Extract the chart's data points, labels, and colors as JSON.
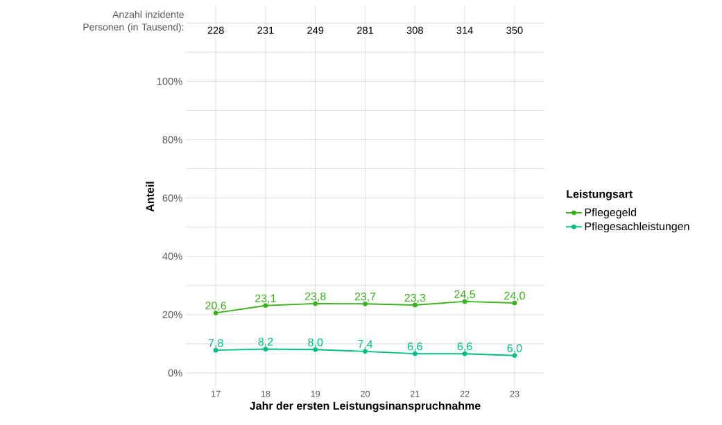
{
  "chart_data": {
    "type": "line",
    "xlabel": "Jahr der ersten Leistungsinanspruchnahme",
    "ylabel": "Anteil",
    "legend_title": "Leistungsart",
    "categories": [
      "17",
      "18",
      "19",
      "20",
      "21",
      "22",
      "23"
    ],
    "series": [
      {
        "name": "Pflegegeld",
        "color": "#38b41a",
        "values": [
          20.6,
          23.1,
          23.8,
          23.7,
          23.3,
          24.5,
          24.0
        ],
        "value_labels": [
          "20,6",
          "23,1",
          "23,8",
          "23,7",
          "23,3",
          "24,5",
          "24,0"
        ]
      },
      {
        "name": "Pflegesachleistungen",
        "color": "#00c07b",
        "values": [
          7.8,
          8.2,
          8.0,
          7.4,
          6.6,
          6.6,
          6.0
        ],
        "value_labels": [
          "7,8",
          "8,2",
          "8,0",
          "7,4",
          "6,6",
          "6,6",
          "6,0"
        ]
      }
    ],
    "ylim": [
      -5,
      126
    ],
    "yticks": [
      {
        "value": 0,
        "label": "0%"
      },
      {
        "value": 10,
        "label": null
      },
      {
        "value": 20,
        "label": "20%"
      },
      {
        "value": 30,
        "label": null
      },
      {
        "value": 40,
        "label": "40%"
      },
      {
        "value": 50,
        "label": null
      },
      {
        "value": 60,
        "label": "60%"
      },
      {
        "value": 70,
        "label": null
      },
      {
        "value": 80,
        "label": "80%"
      },
      {
        "value": 90,
        "label": null
      },
      {
        "value": 100,
        "label": "100%"
      },
      {
        "value": 110,
        "label": null
      },
      {
        "value": 120,
        "label": null
      }
    ],
    "grid": true,
    "legend": "right",
    "marker": "circle",
    "line_style": "solid",
    "annotations": [
      "Anzahl inzidente Personen (in Tausend):",
      {
        "text": "228",
        "x": "17"
      },
      {
        "text": "231",
        "x": "18"
      },
      {
        "text": "249",
        "x": "19"
      },
      {
        "text": "281",
        "x": "20"
      },
      {
        "text": "308",
        "x": "21"
      },
      {
        "text": "314",
        "x": "22"
      },
      {
        "text": "350",
        "x": "23"
      }
    ]
  }
}
